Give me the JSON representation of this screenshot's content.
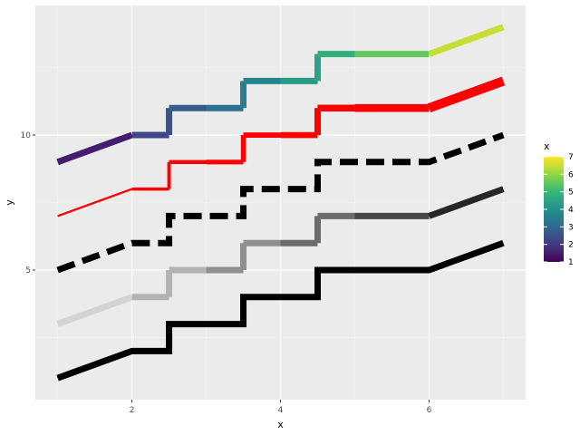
{
  "chart_data": {
    "type": "line",
    "title": "",
    "xlabel": "x",
    "ylabel": "y",
    "xlim": [
      0.7,
      7.3
    ],
    "ylim": [
      0.2,
      14.8
    ],
    "x_ticks": [
      2,
      4,
      6
    ],
    "y_ticks": [
      5,
      10
    ],
    "x": [
      1,
      2,
      3,
      4,
      5,
      6,
      7
    ],
    "grid": true,
    "legend": {
      "title": "x",
      "position": "right",
      "ticks": [
        1,
        2,
        3,
        4,
        5,
        6,
        7
      ],
      "colormap": [
        "#440154",
        "#443983",
        "#31688e",
        "#21918c",
        "#35b779",
        "#90d743",
        "#fde725"
      ]
    },
    "series": [
      {
        "values": [
          1,
          2,
          3,
          4,
          5,
          5,
          6
        ],
        "style": "step-mid",
        "color": "#000000",
        "width": 7,
        "dash": "solid"
      },
      {
        "values": [
          3,
          4,
          5,
          6,
          7,
          7,
          8
        ],
        "style": "step-mid",
        "color_gradient": [
          "#d3d3d3",
          "#b3b3b3",
          "#8f8f8f",
          "#6b6b6b",
          "#474747",
          "#262626"
        ],
        "width": 7,
        "dash": "solid"
      },
      {
        "values": [
          5,
          6,
          7,
          8,
          9,
          9,
          10
        ],
        "style": "step-mid",
        "color": "#000000",
        "width": 7,
        "dash": "dashed"
      },
      {
        "values": [
          7,
          8,
          9,
          10,
          11,
          11,
          12
        ],
        "style": "step-mid",
        "color": "#ff0000",
        "width_range": [
          1.5,
          11
        ],
        "dash": "solid"
      },
      {
        "values": [
          9,
          10,
          11,
          12,
          13,
          13,
          14
        ],
        "style": "step-mid",
        "color_by_x": true,
        "width": 7,
        "dash": "solid"
      }
    ]
  }
}
